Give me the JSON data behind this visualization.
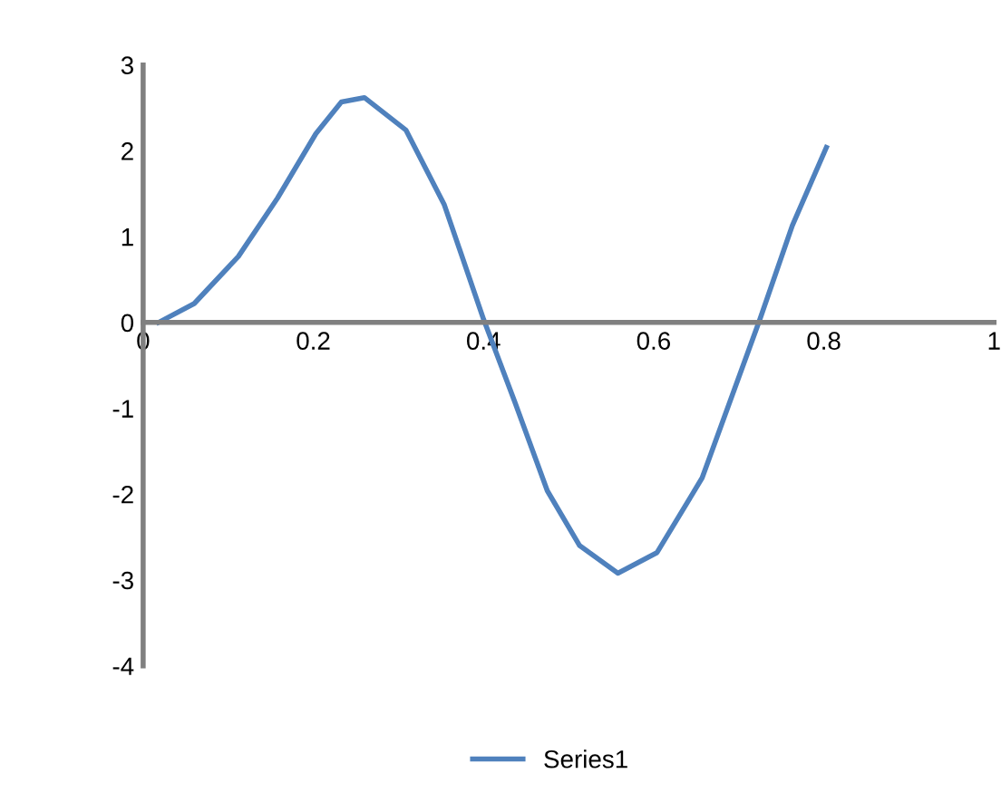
{
  "chart_data": {
    "type": "line",
    "xlim": [
      0,
      1
    ],
    "ylim": [
      -4,
      3
    ],
    "xticks": [
      0,
      0.2,
      0.4,
      0.6,
      0.8,
      1
    ],
    "yticks": [
      -4,
      -3,
      -2,
      -1,
      0,
      1,
      2,
      3
    ],
    "grid": false,
    "legend": "bottom",
    "marker": "none",
    "line_style": "solid",
    "series": [
      {
        "name": "Series1",
        "color": "#4f81bd",
        "x": [
          0.018,
          0.06,
          0.112,
          0.158,
          0.203,
          0.233,
          0.26,
          0.309,
          0.354,
          0.4,
          0.437,
          0.475,
          0.513,
          0.558,
          0.604,
          0.657,
          0.725,
          0.763,
          0.803
        ],
        "values": [
          0,
          0.22,
          0.77,
          1.45,
          2.2,
          2.57,
          2.62,
          2.24,
          1.37,
          0.04,
          -0.93,
          -1.96,
          -2.6,
          -2.92,
          -2.68,
          -1.81,
          0.04,
          1.13,
          2.04
        ]
      }
    ]
  }
}
